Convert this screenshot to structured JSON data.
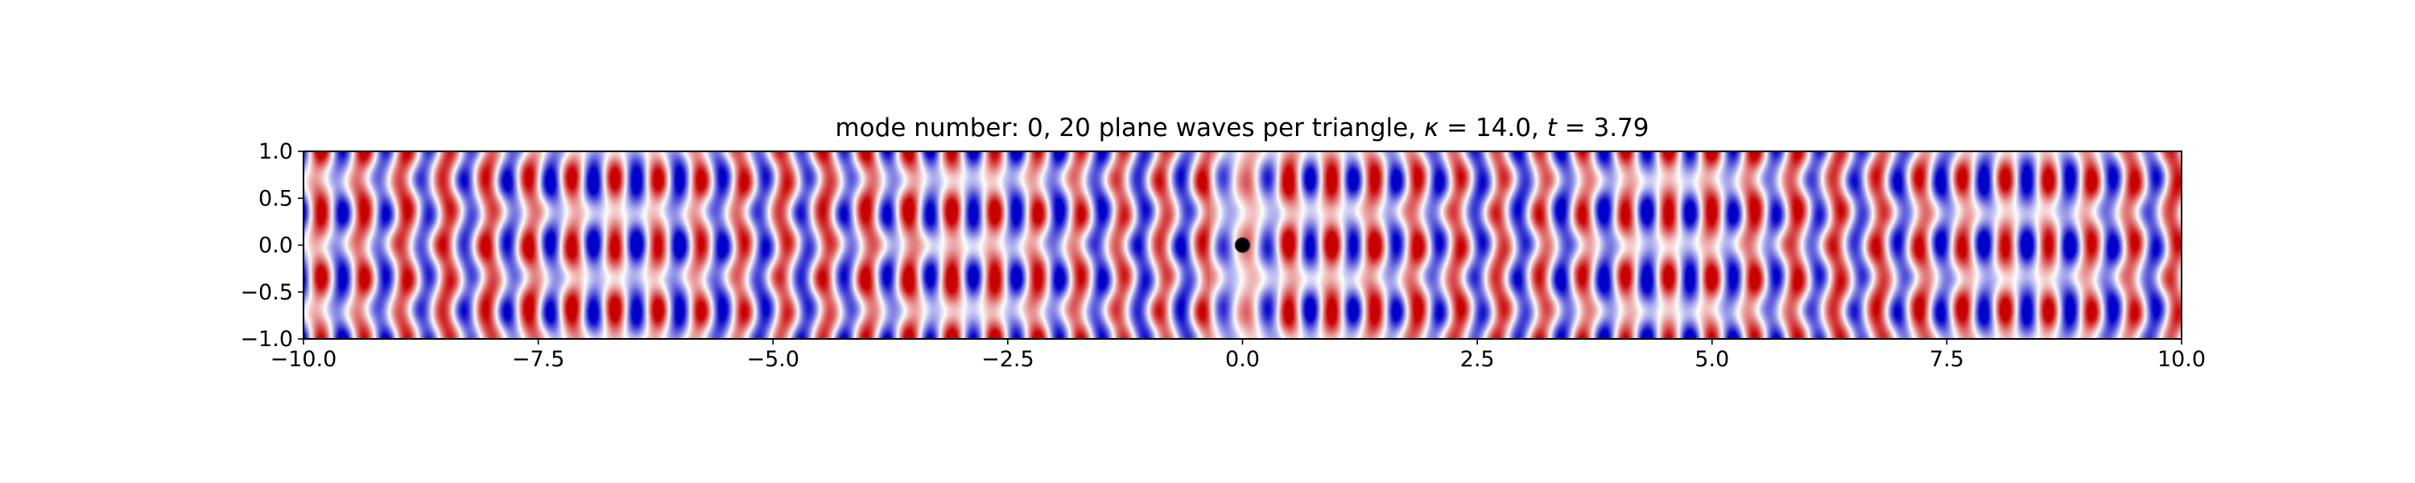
{
  "chart_data": {
    "type": "heatmap",
    "title_parts": [
      "mode number: 0, 20 plane waves per triangle, ",
      "κ",
      " = 14.0, ",
      "t",
      " = 3.79"
    ],
    "xlabel": "",
    "ylabel": "",
    "xlim": [
      -10.0,
      10.0
    ],
    "ylim": [
      -1.0,
      1.0
    ],
    "x_ticks": [
      {
        "value": -10.0,
        "label": "−10.0"
      },
      {
        "value": -7.5,
        "label": "−7.5"
      },
      {
        "value": -5.0,
        "label": "−5.0"
      },
      {
        "value": -2.5,
        "label": "−2.5"
      },
      {
        "value": 0.0,
        "label": "0.0"
      },
      {
        "value": 2.5,
        "label": "2.5"
      },
      {
        "value": 5.0,
        "label": "5.0"
      },
      {
        "value": 7.5,
        "label": "7.5"
      },
      {
        "value": 10.0,
        "label": "10.0"
      }
    ],
    "y_ticks": [
      {
        "value": 1.0,
        "label": "1.0"
      },
      {
        "value": 0.5,
        "label": "0.5"
      },
      {
        "value": 0.0,
        "label": "0.0"
      },
      {
        "value": -0.5,
        "label": "−0.5"
      },
      {
        "value": -1.0,
        "label": "−1.0"
      }
    ],
    "colormap": "bwr",
    "colors": {
      "negative": "#0000c8",
      "zero": "#ffffff",
      "positive": "#c80000"
    },
    "field": {
      "wavenumber": 14.0,
      "stripe_wavelength": 0.4488
    },
    "source_marker": {
      "x": 0.0,
      "y": 0.0,
      "color": "#000000"
    },
    "grid": false
  }
}
